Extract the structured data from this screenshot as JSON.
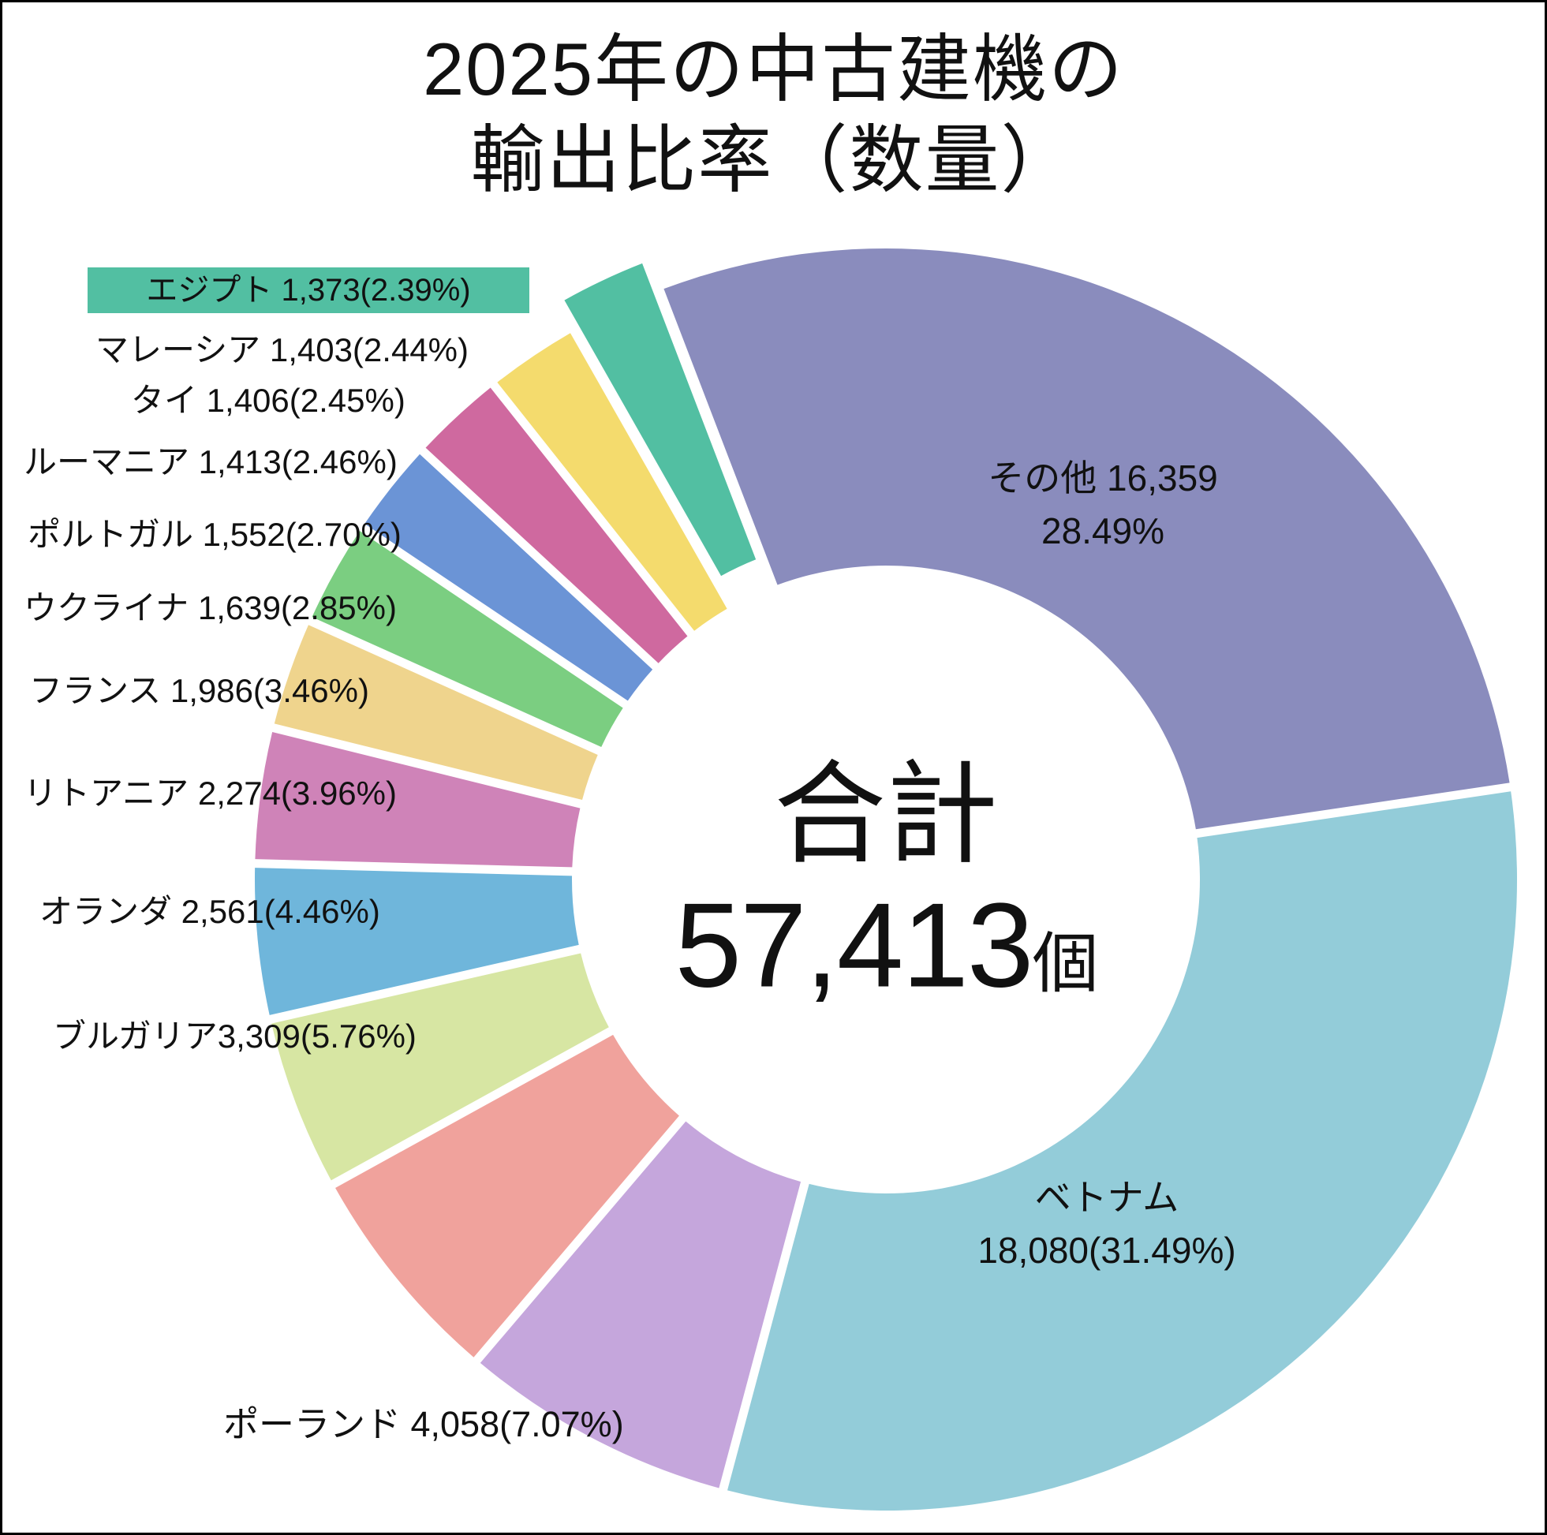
{
  "title": {
    "line1": "2025年の中古建機の",
    "line2": "輸出比率（数量）"
  },
  "center": {
    "label": "合計",
    "value": "57,413",
    "unit": "個"
  },
  "chart_data": {
    "type": "pie",
    "subtype": "donut",
    "title": "2025年の中古建機の輸出比率（数量）",
    "total": 57413,
    "total_label": "合計",
    "total_display": "57,413",
    "total_unit": "個",
    "start_angle_deg": -21,
    "direction": "clockwise",
    "legend_position": "around-slices",
    "segments": [
      {
        "name": "その他",
        "value": 16359,
        "pct": 28.49,
        "label": "その他 16,359\n28.49%",
        "color": "#8a8cbd",
        "highlighted": false
      },
      {
        "name": "ベトナム",
        "value": 18080,
        "pct": 31.49,
        "label": "ベトナム\n18,080(31.49%)",
        "color": "#93ccd9",
        "highlighted": false
      },
      {
        "name": "ポーランド",
        "value": 4058,
        "pct": 7.07,
        "label": "ポーランド 4,058(7.07%)",
        "color": "#c5a6dc",
        "highlighted": false
      },
      {
        "name": "ブルガリア",
        "value": 3309,
        "pct": 5.76,
        "label": "ブルガリア3,309(5.76%)",
        "color": "#f0a29c",
        "highlighted": false
      },
      {
        "name": "オランダ",
        "value": 2561,
        "pct": 4.46,
        "label": "オランダ 2,561(4.46%)",
        "color": "#d7e6a3",
        "highlighted": false
      },
      {
        "name": "リトアニア",
        "value": 2274,
        "pct": 3.96,
        "label": "リトアニア 2,274(3.96%)",
        "color": "#6fb6db",
        "highlighted": false
      },
      {
        "name": "フランス",
        "value": 1986,
        "pct": 3.46,
        "label": "フランス 1,986(3.46%)",
        "color": "#cf83b8",
        "highlighted": false
      },
      {
        "name": "ウクライナ",
        "value": 1639,
        "pct": 2.85,
        "label": "ウクライナ 1,639(2.85%)",
        "color": "#efd48d",
        "highlighted": false
      },
      {
        "name": "ポルトガル",
        "value": 1552,
        "pct": 2.7,
        "label": "ポルトガル 1,552(2.70%)",
        "color": "#7bce81",
        "highlighted": false
      },
      {
        "name": "ルーマニア",
        "value": 1413,
        "pct": 2.46,
        "label": "ルーマニア 1,413(2.46%)",
        "color": "#6b94d6",
        "highlighted": false
      },
      {
        "name": "タイ",
        "value": 1406,
        "pct": 2.45,
        "label": "タイ 1,406(2.45%)",
        "color": "#cf699f",
        "highlighted": false
      },
      {
        "name": "マレーシア",
        "value": 1403,
        "pct": 2.44,
        "label": "マレーシア 1,403(2.44%)",
        "color": "#f4db6d",
        "highlighted": false
      },
      {
        "name": "エジプト",
        "value": 1373,
        "pct": 2.39,
        "label": "エジプト 1,373(2.39%)",
        "color": "#52bfa2",
        "highlighted": true
      }
    ]
  }
}
